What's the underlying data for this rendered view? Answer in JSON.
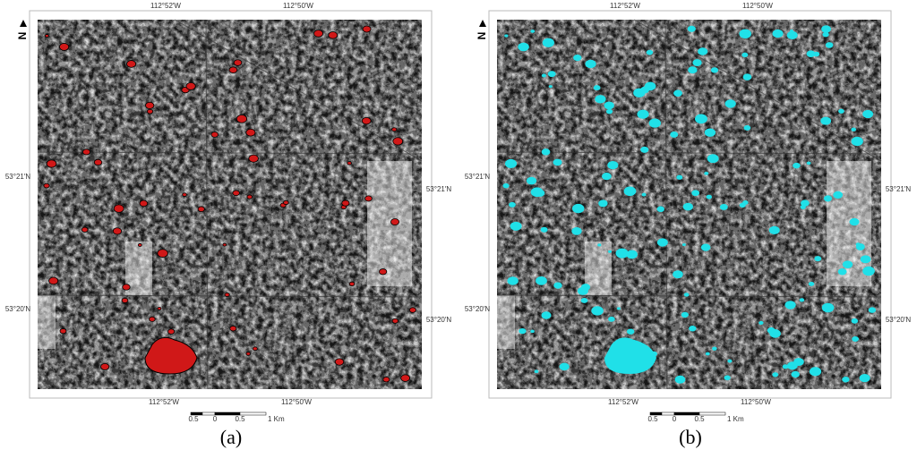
{
  "panels": [
    {
      "label": "(a)",
      "north": "N",
      "top_labels": [
        "112°52′W",
        "112°50′W"
      ],
      "bottom_labels": [
        "112°52′W",
        "112°50′W"
      ],
      "left_labels": [
        "53°21′N",
        "53°20′N"
      ],
      "right_labels": [
        "53°21′N",
        "53°20′N"
      ],
      "scale_labels": [
        "0.5",
        "0",
        "0.5",
        "1 Km"
      ]
    },
    {
      "label": "(b)",
      "north": "N",
      "top_labels": [
        "112°52′W",
        "112°50′W"
      ],
      "bottom_labels": [
        "112°52′W",
        "112°50′W"
      ],
      "left_labels": [
        "53°21′N",
        "53°20′N"
      ],
      "right_labels": [
        "53°21′N",
        "53°20′N"
      ],
      "scale_labels": [
        "0.5",
        "0",
        "0.5",
        "1 Km"
      ]
    }
  ]
}
